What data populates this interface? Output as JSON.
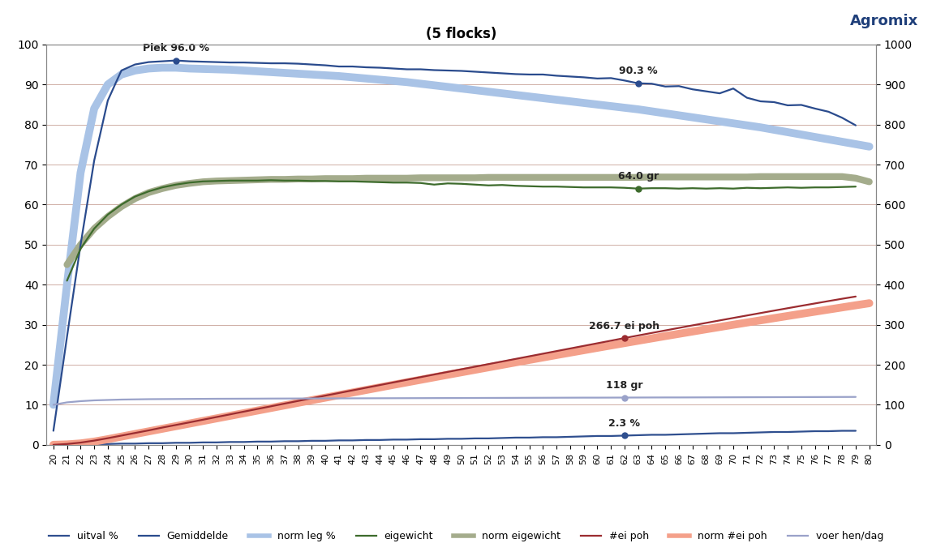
{
  "chart_data": {
    "type": "line",
    "title": "(5 flocks)",
    "logo": "Agromix",
    "x": [
      20,
      21,
      22,
      23,
      24,
      25,
      26,
      27,
      28,
      29,
      30,
      31,
      32,
      33,
      34,
      35,
      36,
      37,
      38,
      39,
      40,
      41,
      42,
      43,
      44,
      45,
      46,
      47,
      48,
      49,
      50,
      51,
      52,
      53,
      54,
      55,
      56,
      57,
      58,
      59,
      60,
      61,
      62,
      63,
      64,
      65,
      66,
      67,
      68,
      69,
      70,
      71,
      72,
      73,
      74,
      75,
      76,
      77,
      78,
      79,
      80
    ],
    "xlim": [
      19.5,
      80.5
    ],
    "xticks": [
      20,
      21,
      22,
      23,
      24,
      25,
      26,
      27,
      28,
      29,
      30,
      31,
      32,
      33,
      34,
      35,
      36,
      37,
      38,
      39,
      40,
      41,
      42,
      43,
      44,
      45,
      46,
      47,
      48,
      49,
      50,
      51,
      52,
      53,
      54,
      55,
      56,
      57,
      58,
      59,
      60,
      61,
      62,
      63,
      64,
      65,
      66,
      67,
      68,
      69,
      70,
      71,
      72,
      73,
      74,
      75,
      76,
      77,
      78,
      79,
      80
    ],
    "ylim": [
      0,
      100
    ],
    "yticks": [
      0,
      10,
      20,
      30,
      40,
      50,
      60,
      70,
      80,
      90,
      100
    ],
    "y2lim": [
      0,
      1000
    ],
    "y2ticks": [
      0,
      100,
      200,
      300,
      400,
      500,
      600,
      700,
      800,
      900,
      1000
    ],
    "grid": true,
    "legend": "lower center",
    "series": [
      {
        "name": "uitval %",
        "color": "#2f4f8f",
        "axis": "y",
        "values": [
          0,
          0.1,
          0.1,
          0.2,
          0.2,
          0.3,
          0.3,
          0.4,
          0.4,
          0.5,
          0.5,
          0.6,
          0.6,
          0.7,
          0.7,
          0.8,
          0.8,
          0.9,
          0.9,
          1.0,
          1.0,
          1.1,
          1.1,
          1.2,
          1.2,
          1.3,
          1.3,
          1.4,
          1.4,
          1.5,
          1.5,
          1.6,
          1.6,
          1.7,
          1.8,
          1.8,
          1.9,
          1.9,
          2.0,
          2.1,
          2.2,
          2.2,
          2.3,
          2.4,
          2.5,
          2.5,
          2.6,
          2.7,
          2.8,
          2.9,
          2.9,
          3.0,
          3.1,
          3.2,
          3.2,
          3.3,
          3.4,
          3.4,
          3.5,
          3.5,
          null
        ]
      },
      {
        "name": "Gemiddelde",
        "color": "#2a4b8d",
        "axis": "y",
        "values": [
          3.5,
          27,
          50,
          71,
          86,
          93.5,
          95.0,
          95.6,
          95.8,
          96.0,
          95.8,
          95.7,
          95.6,
          95.5,
          95.5,
          95.4,
          95.3,
          95.3,
          95.2,
          95.0,
          94.8,
          94.5,
          94.5,
          94.3,
          94.2,
          94.0,
          93.8,
          93.8,
          93.6,
          93.5,
          93.4,
          93.2,
          93.0,
          92.8,
          92.6,
          92.5,
          92.5,
          92.2,
          92.0,
          91.8,
          91.5,
          91.6,
          91.0,
          90.3,
          90.2,
          89.5,
          89.6,
          88.8,
          88.3,
          87.8,
          89.0,
          86.7,
          85.8,
          85.6,
          84.8,
          84.9,
          84.0,
          83.2,
          81.7,
          79.8,
          null
        ]
      },
      {
        "name": "norm leg %",
        "color": "#a9c3e6",
        "axis": "y",
        "values": [
          10,
          40,
          68,
          84,
          90,
          92.5,
          93.5,
          94.0,
          94.2,
          94.2,
          94.0,
          93.9,
          93.8,
          93.7,
          93.5,
          93.3,
          93.1,
          92.9,
          92.7,
          92.5,
          92.3,
          92.1,
          91.8,
          91.5,
          91.2,
          90.9,
          90.6,
          90.2,
          89.8,
          89.4,
          89.0,
          88.6,
          88.2,
          87.8,
          87.4,
          87.0,
          86.6,
          86.2,
          85.8,
          85.4,
          85.0,
          84.6,
          84.2,
          83.8,
          83.3,
          82.8,
          82.3,
          81.8,
          81.3,
          80.8,
          80.3,
          79.8,
          79.3,
          78.7,
          78.1,
          77.5,
          76.9,
          76.3,
          75.7,
          75.1,
          74.5
        ]
      },
      {
        "name": "eigewicht",
        "color": "#3d6b2c",
        "axis": "y",
        "values": [
          null,
          41,
          49,
          54,
          57.5,
          60,
          62,
          63.3,
          64.3,
          65.0,
          65.5,
          65.8,
          65.9,
          66.0,
          66.0,
          66.0,
          66.1,
          66.0,
          66.0,
          65.9,
          65.9,
          65.8,
          65.8,
          65.7,
          65.6,
          65.5,
          65.5,
          65.4,
          65.0,
          65.3,
          65.2,
          65.0,
          64.8,
          64.9,
          64.7,
          64.6,
          64.5,
          64.5,
          64.4,
          64.3,
          64.3,
          64.3,
          64.2,
          64.0,
          64.1,
          64.1,
          64.0,
          64.1,
          64.0,
          64.1,
          64.0,
          64.2,
          64.1,
          64.2,
          64.3,
          64.2,
          64.3,
          64.3,
          64.4,
          64.5,
          null
        ]
      },
      {
        "name": "norm eigewicht",
        "color": "#a4ac8c",
        "axis": "y",
        "values": [
          null,
          45,
          50,
          54,
          57,
          59.5,
          61.5,
          63,
          64,
          64.8,
          65.3,
          65.7,
          65.9,
          66.0,
          66.1,
          66.2,
          66.3,
          66.3,
          66.4,
          66.4,
          66.5,
          66.5,
          66.5,
          66.6,
          66.6,
          66.6,
          66.6,
          66.7,
          66.7,
          66.7,
          66.7,
          66.7,
          66.8,
          66.8,
          66.8,
          66.8,
          66.8,
          66.8,
          66.8,
          66.8,
          66.8,
          66.8,
          66.8,
          66.8,
          66.9,
          66.9,
          66.9,
          66.9,
          66.9,
          66.9,
          66.9,
          66.9,
          67.0,
          67.0,
          67.0,
          67.0,
          67.0,
          67.0,
          67.0,
          66.6,
          65.7
        ]
      },
      {
        "name": "#ei poh",
        "color": "#9b2c30",
        "axis": "y2",
        "values": [
          0,
          2,
          5.5,
          10.5,
          16.5,
          23,
          29.5,
          36,
          43,
          49.5,
          56,
          62.7,
          69.4,
          76.1,
          82.8,
          89.5,
          96.2,
          102.9,
          109.6,
          116.2,
          122.8,
          129.4,
          136,
          142.6,
          149.2,
          155.8,
          162.4,
          169,
          175.6,
          182.1,
          188.6,
          195.1,
          201.6,
          208.1,
          214.6,
          221.1,
          227.6,
          234.1,
          240.6,
          247.1,
          253.6,
          260.1,
          266.7,
          273.1,
          279.4,
          285.7,
          292,
          298.3,
          304.5,
          310.7,
          316.9,
          323,
          329.1,
          335.2,
          341.2,
          347.2,
          353.1,
          359,
          364.8,
          370.4,
          null
        ]
      },
      {
        "name": "norm #ei poh",
        "color": "#f4a08a",
        "axis": "y2",
        "values": [
          0,
          1,
          3.5,
          8,
          14,
          20.5,
          27,
          33.5,
          40,
          46.5,
          53,
          59.5,
          66,
          72.5,
          79,
          85.5,
          92,
          98.5,
          105,
          111.4,
          117.8,
          124.2,
          130.6,
          137,
          143.4,
          149.8,
          156.1,
          162.4,
          168.7,
          175,
          181.2,
          187.4,
          193.6,
          199.8,
          206,
          212.1,
          218.2,
          224.3,
          230.3,
          236.3,
          242.3,
          248.2,
          254.1,
          260,
          265.8,
          271.6,
          277.3,
          283,
          288.7,
          294.3,
          299.9,
          305.4,
          310.9,
          316.4,
          321.8,
          327.2,
          332.6,
          337.9,
          343.2,
          348.5,
          353.7
        ]
      },
      {
        "name": "voer hen/dag",
        "color": "#9aa2c9",
        "axis": "y2",
        "values": [
          100,
          106,
          109,
          111,
          112,
          113,
          113.5,
          114,
          114.2,
          114.4,
          114.6,
          114.8,
          115,
          115.1,
          115.2,
          115.3,
          115.5,
          115.6,
          115.7,
          115.8,
          115.9,
          116,
          116.1,
          116.2,
          116.3,
          116.4,
          116.5,
          116.6,
          116.7,
          116.8,
          116.9,
          117,
          117.1,
          117.2,
          117.3,
          117.4,
          117.5,
          117.6,
          117.7,
          117.8,
          117.8,
          117.9,
          118,
          118.1,
          118.2,
          118.3,
          118.3,
          118.4,
          118.5,
          118.6,
          118.7,
          118.8,
          118.9,
          119,
          119.1,
          119.2,
          119.3,
          119.4,
          119.5,
          119.6,
          null
        ]
      }
    ],
    "annotations": [
      {
        "text": "Piek 96.0 %",
        "series": "Gemiddelde",
        "x": 29
      },
      {
        "text": "90.3 %",
        "series": "Gemiddelde",
        "x": 63
      },
      {
        "text": "64.0 gr",
        "series": "eigewicht",
        "x": 63
      },
      {
        "text": "266.7 ei poh",
        "series": "#ei poh",
        "x": 62
      },
      {
        "text": "118 gr",
        "series": "voer hen/dag",
        "x": 62
      },
      {
        "text": "2.3 %",
        "series": "uitval %",
        "x": 62
      }
    ]
  }
}
